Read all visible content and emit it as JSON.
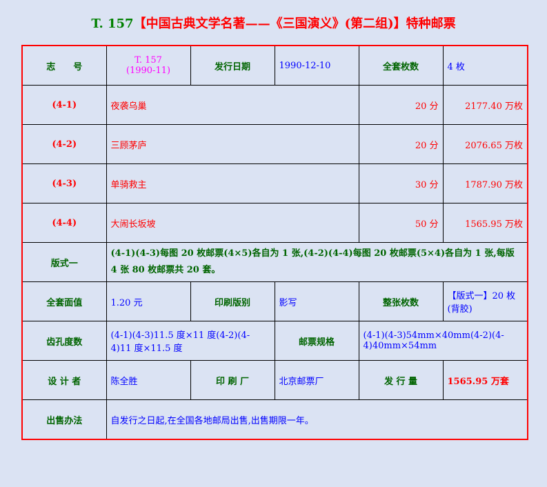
{
  "title": {
    "code": "T. 157",
    "text": "【中国古典文学名著——《三国演义》(第二组)】特种邮票"
  },
  "row1": {
    "label_code": "志　　号",
    "code_line1": "T. 157",
    "code_line2": "(1990-11)",
    "label_date": "发行日期",
    "date": "1990-12-10",
    "label_count": "全套枚数",
    "count": "4 枚"
  },
  "stamps": [
    {
      "no": "(4-1)",
      "name": "夜袭乌巢",
      "value": "20 分",
      "issued": "2177.40 万枚"
    },
    {
      "no": "(4-2)",
      "name": "三顾茅庐",
      "value": "20 分",
      "issued": "2076.65 万枚"
    },
    {
      "no": "(4-3)",
      "name": "单骑救主",
      "value": "30 分",
      "issued": "1787.90 万枚"
    },
    {
      "no": "(4-4)",
      "name": "大闹长坂坡",
      "value": "50 分",
      "issued": "1565.95 万枚"
    }
  ],
  "format": {
    "label": "版式一",
    "text": "(4-1)(4-3)每图 20 枚邮票(4×5)各自为 1 张,(4-2)(4-4)每图 20 枚邮票(5×4)各自为 1 张,每版 4 张 80 枚邮票共 20 套。"
  },
  "row_face": {
    "label_face": "全套面值",
    "face": "1.20 元",
    "label_print": "印刷版别",
    "print": "影写",
    "label_sheet": "整张枚数",
    "sheet": "【版式一】20 枚(背胶)"
  },
  "row_perf": {
    "label_perf": "齿孔度数",
    "perf": "(4-1)(4-3)11.5 度×11 度(4-2)(4-4)11 度×11.5 度",
    "label_size": "邮票规格",
    "size": "(4-1)(4-3)54mm×40mm(4-2)(4-4)40mm×54mm"
  },
  "row_design": {
    "label_designer": "设 计 者",
    "designer": "陈全胜",
    "label_printer": "印 刷 厂",
    "printer": "北京邮票厂",
    "label_qty": "发 行 量",
    "qty": "1565.95 万套"
  },
  "row_sale": {
    "label": "出售办法",
    "text": "自发行之日起,在全国各地邮局出售,出售期限一年。"
  }
}
